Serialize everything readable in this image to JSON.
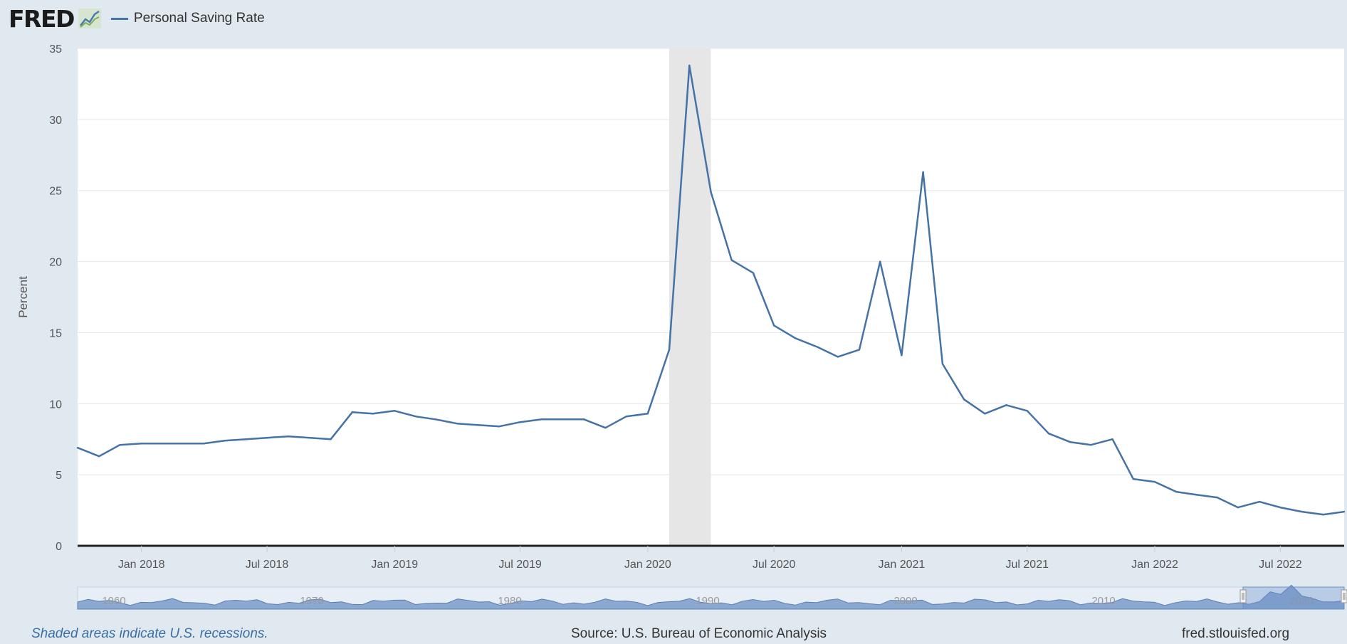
{
  "header": {
    "logo_text": "FRED",
    "logo_icon": "fred-line-graph-icon",
    "legend_label": "Personal Saving Rate"
  },
  "colors": {
    "series": "#4572a7",
    "recession": "#e6e6e6",
    "plot_bg": "#ffffff",
    "page_bg": "#e1e9f0",
    "grid": "#e6e6e6",
    "nav_fill": "#8aa8d0"
  },
  "footer": {
    "recession_note": "Shaded areas indicate U.S. recessions.",
    "source": "Source: U.S. Bureau of Economic Analysis",
    "site": "fred.stlouisfed.org"
  },
  "chart_data": {
    "type": "line",
    "ylabel": "Percent",
    "ylim": [
      0,
      35
    ],
    "yticks": [
      0,
      5,
      10,
      15,
      20,
      25,
      30,
      35
    ],
    "xlim": [
      "2017-10-01",
      "2022-10-01"
    ],
    "xticks": [
      {
        "date": "2018-01-01",
        "label": "Jan 2018"
      },
      {
        "date": "2018-07-01",
        "label": "Jul 2018"
      },
      {
        "date": "2019-01-01",
        "label": "Jan 2019"
      },
      {
        "date": "2019-07-01",
        "label": "Jul 2019"
      },
      {
        "date": "2020-01-01",
        "label": "Jan 2020"
      },
      {
        "date": "2020-07-01",
        "label": "Jul 2020"
      },
      {
        "date": "2021-01-01",
        "label": "Jan 2021"
      },
      {
        "date": "2021-07-01",
        "label": "Jul 2021"
      },
      {
        "date": "2022-01-01",
        "label": "Jan 2022"
      },
      {
        "date": "2022-07-01",
        "label": "Jul 2022"
      }
    ],
    "grid": true,
    "legend": "top-left",
    "recessions": [
      {
        "start": "2020-02-01",
        "end": "2020-04-01"
      }
    ],
    "series": [
      {
        "name": "Personal Saving Rate",
        "x": [
          "2017-10-01",
          "2017-11-01",
          "2017-12-01",
          "2018-01-01",
          "2018-02-01",
          "2018-03-01",
          "2018-04-01",
          "2018-05-01",
          "2018-06-01",
          "2018-07-01",
          "2018-08-01",
          "2018-09-01",
          "2018-10-01",
          "2018-11-01",
          "2018-12-01",
          "2019-01-01",
          "2019-02-01",
          "2019-03-01",
          "2019-04-01",
          "2019-05-01",
          "2019-06-01",
          "2019-07-01",
          "2019-08-01",
          "2019-09-01",
          "2019-10-01",
          "2019-11-01",
          "2019-12-01",
          "2020-01-01",
          "2020-02-01",
          "2020-03-01",
          "2020-04-01",
          "2020-05-01",
          "2020-06-01",
          "2020-07-01",
          "2020-08-01",
          "2020-09-01",
          "2020-10-01",
          "2020-11-01",
          "2020-12-01",
          "2021-01-01",
          "2021-02-01",
          "2021-03-01",
          "2021-04-01",
          "2021-05-01",
          "2021-06-01",
          "2021-07-01",
          "2021-08-01",
          "2021-09-01",
          "2021-10-01",
          "2021-11-01",
          "2021-12-01",
          "2022-01-01",
          "2022-02-01",
          "2022-03-01",
          "2022-04-01",
          "2022-05-01",
          "2022-06-01",
          "2022-07-01",
          "2022-08-01",
          "2022-09-01",
          "2022-10-01"
        ],
        "y": [
          6.9,
          6.3,
          7.1,
          7.2,
          7.2,
          7.2,
          7.2,
          7.4,
          7.5,
          7.6,
          7.7,
          7.6,
          7.5,
          9.4,
          9.3,
          9.5,
          9.1,
          8.9,
          8.6,
          8.5,
          8.4,
          8.7,
          8.9,
          8.9,
          8.9,
          8.3,
          9.1,
          9.3,
          13.8,
          33.8,
          24.9,
          20.1,
          19.2,
          15.5,
          14.6,
          14.0,
          13.3,
          13.8,
          20.0,
          13.4,
          26.3,
          12.8,
          10.3,
          9.3,
          9.9,
          9.5,
          7.9,
          7.3,
          7.1,
          7.5,
          4.7,
          4.5,
          3.8,
          3.6,
          3.4,
          2.7,
          3.1,
          2.7,
          2.4,
          2.2,
          2.4
        ]
      }
    ],
    "navigator": {
      "xticks": [
        "1960",
        "1970",
        "1980",
        "1990",
        "2000",
        "2010",
        "2020"
      ]
    }
  }
}
